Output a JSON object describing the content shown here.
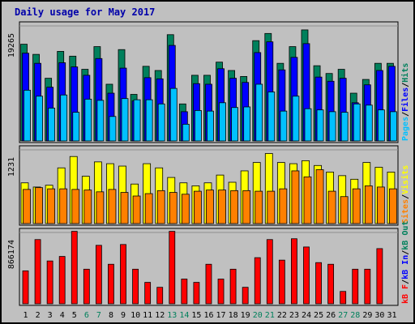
{
  "title": "Daily usage for May 2017",
  "colors": {
    "background": "#c0c0c0",
    "title": "#0000aa",
    "hits": "#00805c",
    "files": "#0000ff",
    "pages": "#00c0ff",
    "visits": "#ffff00",
    "sites": "#ff8000",
    "kbin": "#ff0000",
    "weekend_label": "#00805c"
  },
  "chart_data": [
    {
      "type": "bar",
      "panel": "requests",
      "y_max_label": "19265",
      "legend": [
        "Pages",
        "Files",
        "Hits"
      ],
      "categories": [
        "1",
        "2",
        "3",
        "4",
        "5",
        "6",
        "7",
        "8",
        "9",
        "10",
        "11",
        "12",
        "13",
        "14",
        "15",
        "16",
        "17",
        "18",
        "19",
        "20",
        "21",
        "22",
        "23",
        "24",
        "25",
        "26",
        "27",
        "28",
        "29",
        "30",
        "31"
      ],
      "weekend_days": [
        "6",
        "7",
        "13",
        "14",
        "20",
        "21",
        "27",
        "28"
      ],
      "ylim": [
        0,
        19265
      ],
      "series": [
        {
          "name": "Hits",
          "values": [
            16200,
            14500,
            10500,
            15000,
            14200,
            12000,
            15800,
            9500,
            15300,
            7800,
            12500,
            11800,
            17800,
            6200,
            11000,
            11000,
            13200,
            11800,
            10800,
            16800,
            18000,
            13000,
            15800,
            18600,
            12600,
            11300,
            12000,
            8000,
            10300,
            13000,
            13000
          ]
        },
        {
          "name": "Files",
          "values": [
            14700,
            13000,
            9000,
            13100,
            12400,
            11000,
            13800,
            8000,
            12200,
            6700,
            10600,
            10400,
            16000,
            4900,
            9600,
            9500,
            12100,
            10500,
            9800,
            14800,
            16600,
            11900,
            14000,
            16300,
            10700,
            10000,
            10500,
            6400,
            9400,
            11800,
            12500
          ]
        },
        {
          "name": "Pages",
          "values": [
            8500,
            7500,
            5500,
            7700,
            4800,
            7000,
            6800,
            4100,
            7100,
            6900,
            6900,
            6200,
            8800,
            2800,
            5100,
            5000,
            6400,
            5600,
            5700,
            9500,
            8200,
            5000,
            7500,
            5400,
            5200,
            4900,
            4800,
            6200,
            6000,
            5200,
            4900
          ]
        }
      ]
    },
    {
      "type": "bar",
      "panel": "visitors",
      "y_max_label": "1231",
      "legend": [
        "Sites",
        "Visits"
      ],
      "categories": [
        "1",
        "2",
        "3",
        "4",
        "5",
        "6",
        "7",
        "8",
        "9",
        "10",
        "11",
        "12",
        "13",
        "14",
        "15",
        "16",
        "17",
        "18",
        "19",
        "20",
        "21",
        "22",
        "23",
        "24",
        "25",
        "26",
        "27",
        "28",
        "29",
        "30",
        "31"
      ],
      "ylim": [
        0,
        1231
      ],
      "series": [
        {
          "name": "Visits",
          "values": [
            680,
            610,
            640,
            930,
            1120,
            790,
            1030,
            1000,
            960,
            660,
            1000,
            930,
            770,
            680,
            630,
            680,
            810,
            690,
            880,
            1020,
            1170,
            1020,
            1000,
            1050,
            970,
            860,
            800,
            740,
            1020,
            940,
            860
          ]
        },
        {
          "name": "Sites",
          "values": [
            570,
            600,
            580,
            580,
            570,
            560,
            530,
            570,
            520,
            460,
            500,
            550,
            520,
            490,
            540,
            560,
            560,
            550,
            550,
            540,
            540,
            580,
            880,
            780,
            900,
            540,
            450,
            580,
            630,
            610,
            580
          ]
        }
      ]
    },
    {
      "type": "bar",
      "panel": "traffic",
      "y_max_label": "866174",
      "legend": [
        "kB F",
        "kB In",
        "kB Out"
      ],
      "categories": [
        "1",
        "2",
        "3",
        "4",
        "5",
        "6",
        "7",
        "8",
        "9",
        "10",
        "11",
        "12",
        "13",
        "14",
        "15",
        "16",
        "17",
        "18",
        "19",
        "20",
        "21",
        "22",
        "23",
        "24",
        "25",
        "26",
        "27",
        "28",
        "29",
        "30",
        "31"
      ],
      "ylim": [
        0,
        866174
      ],
      "series": [
        {
          "name": "kB F",
          "values": [
            400000,
            780000,
            520000,
            575000,
            880000,
            420000,
            710000,
            480000,
            720000,
            420000,
            260000,
            200000,
            880000,
            300000,
            260000,
            480000,
            300000,
            420000,
            200000,
            560000,
            780000,
            530000,
            790000,
            690000,
            500000,
            480000,
            150000,
            420000,
            420000,
            670000,
            0
          ]
        }
      ]
    }
  ]
}
